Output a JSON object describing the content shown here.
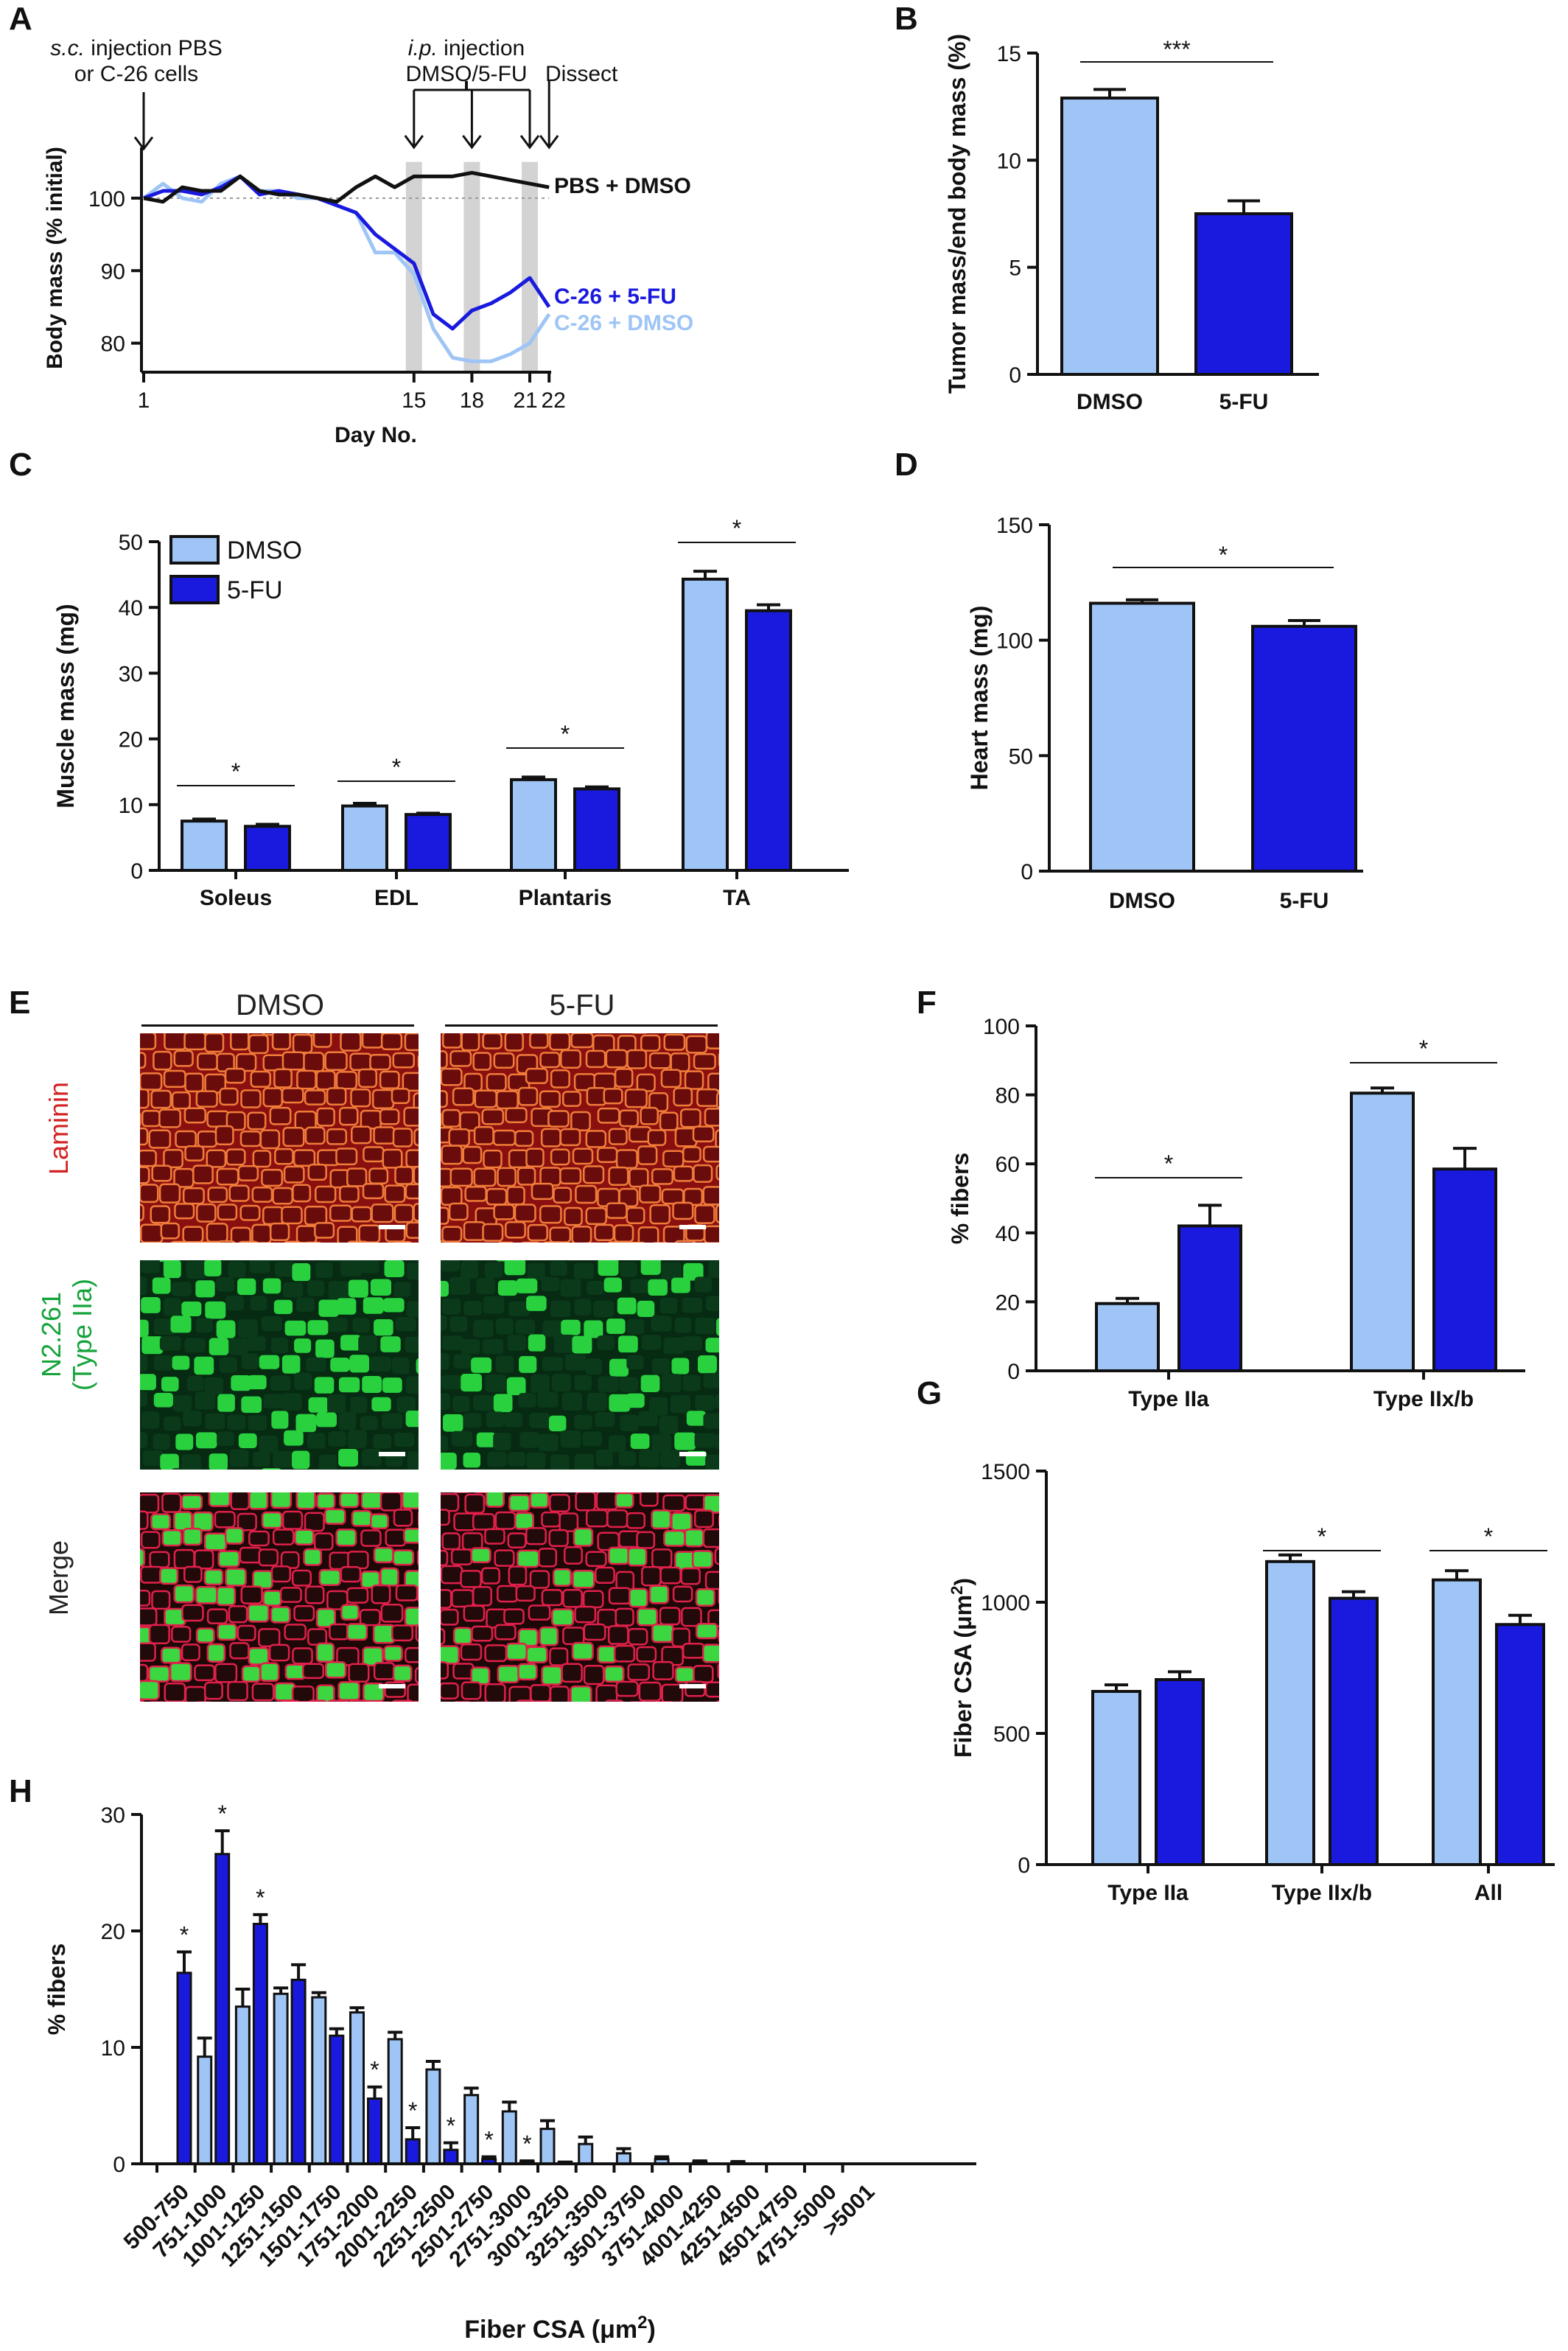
{
  "panel_letters": [
    "A",
    "B",
    "C",
    "D",
    "E",
    "F",
    "G",
    "H"
  ],
  "colors": {
    "dmso": "#9ec5f5",
    "fu": "#1a1adf",
    "black": "#111111",
    "shade": "#d3d3d3",
    "ref": "#999999"
  },
  "chart_data": [
    {
      "panel": "A",
      "type": "line",
      "xlabel": "Day No.",
      "ylabel": "Body mass (% initial)",
      "ylim": [
        76,
        107
      ],
      "yticks": [
        80,
        90,
        100
      ],
      "xticks": [
        1,
        15,
        18,
        21,
        22
      ],
      "shaded_days": [
        15,
        18,
        21
      ],
      "reference_y": 100,
      "annotations": {
        "sc_line1": "s.c. injection PBS",
        "sc_line2": "or C-26 cells",
        "ip_line1": "i.p. injection",
        "ip_line2": "DMSO/5-FU",
        "dissect": "Dissect"
      },
      "series": [
        {
          "name": "PBS + DMSO",
          "color": "#111111",
          "x": [
            1,
            2,
            3,
            4,
            5,
            6,
            7,
            8,
            9,
            10,
            11,
            12,
            13,
            14,
            15,
            16,
            17,
            18,
            19,
            20,
            21,
            22
          ],
          "y": [
            100,
            99.5,
            101.5,
            101,
            101,
            103,
            101,
            100.5,
            100.5,
            100,
            99.5,
            101.5,
            103,
            101.5,
            103,
            103,
            103,
            103.5,
            103,
            102.5,
            102,
            101.5
          ]
        },
        {
          "name": "C-26 + 5-FU",
          "color": "#1a1adf",
          "x": [
            1,
            2,
            3,
            4,
            5,
            6,
            7,
            8,
            9,
            10,
            11,
            12,
            13,
            14,
            15,
            16,
            17,
            18,
            19,
            20,
            21,
            22
          ],
          "y": [
            100,
            101,
            101,
            100.5,
            101.5,
            103,
            100.5,
            101,
            100.5,
            100,
            99,
            98,
            95,
            93,
            91,
            84,
            82,
            84.5,
            85.5,
            87,
            89,
            85
          ]
        },
        {
          "name": "C-26 + DMSO",
          "color": "#9ec5f5",
          "x": [
            1,
            2,
            3,
            4,
            5,
            6,
            7,
            8,
            9,
            10,
            11,
            12,
            13,
            14,
            15,
            16,
            17,
            18,
            19,
            20,
            21,
            22
          ],
          "y": [
            100,
            102,
            100,
            99.5,
            102,
            103,
            101,
            101,
            100,
            100,
            99,
            98,
            92.5,
            92.5,
            89.5,
            82,
            78,
            77.5,
            77.5,
            78.5,
            80,
            84
          ]
        }
      ]
    },
    {
      "panel": "B",
      "type": "bar",
      "ylabel": "Tumor mass/end body mass (%)",
      "ylim": [
        0,
        15
      ],
      "yticks": [
        0,
        5,
        10,
        15
      ],
      "categories": [
        "DMSO",
        "5-FU"
      ],
      "values": [
        12.9,
        7.5
      ],
      "errors": [
        0.4,
        0.6
      ],
      "significance": [
        {
          "label": "***",
          "from": 0,
          "to": 1
        }
      ]
    },
    {
      "panel": "C",
      "type": "bar",
      "ylabel": "Muscle mass (mg)",
      "ylim": [
        0,
        50
      ],
      "yticks": [
        0,
        10,
        20,
        30,
        40,
        50
      ],
      "categories": [
        "Soleus",
        "EDL",
        "Plantaris",
        "TA"
      ],
      "series": [
        {
          "name": "DMSO",
          "values": [
            7.5,
            9.8,
            13.8,
            44.3
          ],
          "errors": [
            0.3,
            0.4,
            0.4,
            1.2
          ]
        },
        {
          "name": "5-FU",
          "values": [
            6.7,
            8.5,
            12.4,
            39.5
          ],
          "errors": [
            0.3,
            0.2,
            0.3,
            0.9
          ]
        }
      ],
      "legend": "top-left",
      "significance": [
        "*",
        "*",
        "*",
        "*"
      ]
    },
    {
      "panel": "D",
      "type": "bar",
      "ylabel": "Heart mass (mg)",
      "ylim": [
        0,
        150
      ],
      "yticks": [
        0,
        50,
        100,
        150
      ],
      "categories": [
        "DMSO",
        "5-FU"
      ],
      "values": [
        116,
        106
      ],
      "errors": [
        1.5,
        2.5
      ],
      "significance": [
        {
          "label": "*",
          "from": 0,
          "to": 1
        }
      ]
    },
    {
      "panel": "F",
      "type": "bar",
      "ylabel": "% fibers",
      "ylim": [
        0,
        100
      ],
      "yticks": [
        0,
        20,
        40,
        60,
        80,
        100
      ],
      "categories": [
        "Type IIa",
        "Type IIx/b"
      ],
      "series": [
        {
          "name": "DMSO",
          "values": [
            19.5,
            80.5
          ],
          "errors": [
            1.5,
            1.5
          ]
        },
        {
          "name": "5-FU",
          "values": [
            42,
            58.5
          ],
          "errors": [
            6,
            6
          ]
        }
      ],
      "significance": [
        "*",
        "*"
      ]
    },
    {
      "panel": "G",
      "type": "bar",
      "ylabel": "Fiber CSA (μm²)",
      "ylim": [
        0,
        1500
      ],
      "yticks": [
        0,
        500,
        1000,
        1500
      ],
      "categories": [
        "Type IIa",
        "Type IIx/b",
        "All"
      ],
      "series": [
        {
          "name": "DMSO",
          "values": [
            660,
            1155,
            1085
          ],
          "errors": [
            25,
            25,
            35
          ]
        },
        {
          "name": "5-FU",
          "values": [
            705,
            1015,
            915
          ],
          "errors": [
            30,
            25,
            35
          ]
        }
      ],
      "significance": [
        "",
        "*",
        "*"
      ]
    },
    {
      "panel": "H",
      "type": "bar",
      "xlabel": "Fiber CSA (μm²)",
      "ylabel": "% fibers",
      "ylim": [
        0,
        30
      ],
      "yticks": [
        0,
        10,
        20,
        30
      ],
      "categories": [
        "500-750",
        "751-1000",
        "1001-1250",
        "1251-1500",
        "1501-1750",
        "1751-2000",
        "2001-2250",
        "2251-2500",
        "2501-2750",
        "2751-3000",
        "3001-3250",
        "3251-3500",
        "3501-3750",
        "3751-4000",
        "4001-4250",
        "4251-4500",
        "4501-4750",
        "4751-5000",
        ">5001"
      ],
      "series": [
        {
          "name": "DMSO",
          "values": [
            0,
            9.2,
            13.5,
            14.6,
            14.3,
            13,
            10.7,
            8.1,
            5.9,
            4.5,
            3,
            1.7,
            0.9,
            0.4,
            0.15,
            0.1,
            0,
            0,
            0
          ],
          "errors": [
            0,
            1.6,
            1.5,
            0.5,
            0.4,
            0.4,
            0.6,
            0.7,
            0.6,
            0.8,
            0.7,
            0.6,
            0.4,
            0.2,
            0.1,
            0.1,
            0,
            0,
            0
          ]
        },
        {
          "name": "5-FU",
          "values": [
            16.4,
            26.6,
            20.6,
            15.8,
            11,
            5.6,
            2.1,
            1.2,
            0.4,
            0.15,
            0.1,
            0,
            0,
            0,
            0,
            0,
            0,
            0,
            0
          ],
          "errors": [
            1.8,
            2,
            0.8,
            1.3,
            0.6,
            1,
            1,
            0.6,
            0.2,
            0.1,
            0.05,
            0,
            0,
            0,
            0,
            0,
            0,
            0,
            0
          ]
        }
      ],
      "significance": [
        "*",
        "*",
        "*",
        "",
        "",
        "*",
        "*",
        "*",
        "*",
        "*",
        "",
        "",
        "",
        "",
        "",
        "",
        "",
        "",
        ""
      ]
    }
  ],
  "micrographs": {
    "columns": [
      "DMSO",
      "5-FU"
    ],
    "rows": [
      "Laminin",
      "N2.261",
      "(Type IIa)",
      "Merge"
    ],
    "row_label_colors": [
      "#d42020",
      "#14a33a",
      "#14a33a",
      "#222222"
    ]
  }
}
